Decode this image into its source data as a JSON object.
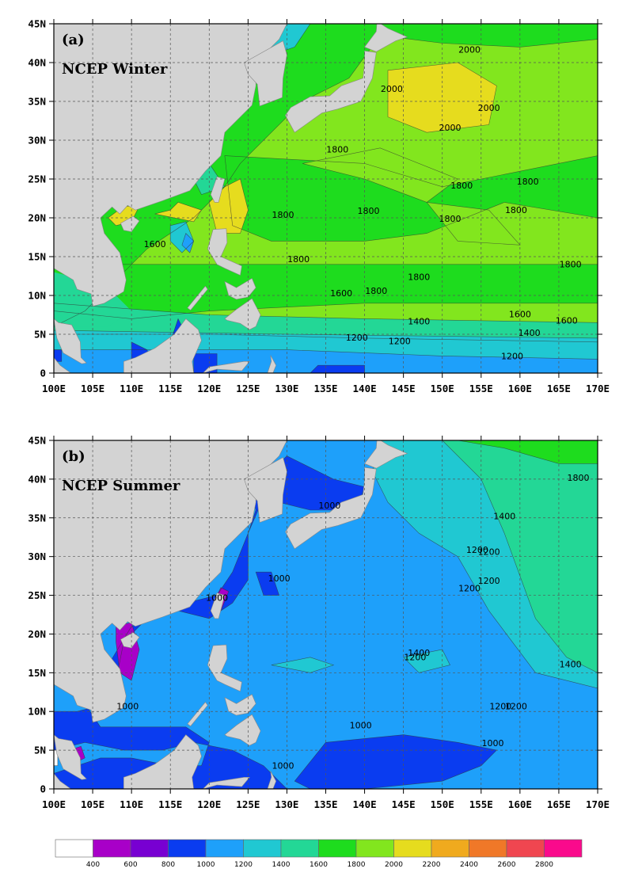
{
  "colors": {
    "land": "#d3d3d3",
    "grid": "#555555",
    "contour": "#333333"
  },
  "axes": {
    "x_ticks": [
      "100E",
      "105E",
      "110E",
      "115E",
      "120E",
      "125E",
      "130E",
      "135E",
      "140E",
      "145E",
      "150E",
      "155E",
      "160E",
      "165E",
      "170E"
    ],
    "y_ticks": [
      "45N",
      "40N",
      "35N",
      "30N",
      "25N",
      "20N",
      "15N",
      "10N",
      "5N",
      "0"
    ]
  },
  "panels": [
    {
      "letter": "(a)",
      "title": "NCEP Winter",
      "contour_labels": [
        {
          "text": "2000",
          "lon": 153.5,
          "lat": 41.3
        },
        {
          "text": "2000",
          "lon": 143.5,
          "lat": 36.2
        },
        {
          "text": "2000",
          "lon": 156,
          "lat": 33.8
        },
        {
          "text": "2000",
          "lon": 151,
          "lat": 31.2
        },
        {
          "text": "1800",
          "lon": 136.5,
          "lat": 28.4
        },
        {
          "text": "1800",
          "lon": 152.5,
          "lat": 23.8
        },
        {
          "text": "1800",
          "lon": 161,
          "lat": 24.3
        },
        {
          "text": "1800",
          "lon": 129.5,
          "lat": 20
        },
        {
          "text": "1800",
          "lon": 140.5,
          "lat": 20.5
        },
        {
          "text": "1800",
          "lon": 151,
          "lat": 19.5
        },
        {
          "text": "1800",
          "lon": 159.5,
          "lat": 20.6
        },
        {
          "text": "1600",
          "lon": 113,
          "lat": 16.2
        },
        {
          "text": "1800",
          "lon": 131.5,
          "lat": 14.3
        },
        {
          "text": "1800",
          "lon": 166.5,
          "lat": 13.6
        },
        {
          "text": "1800",
          "lon": 147,
          "lat": 12
        },
        {
          "text": "1600",
          "lon": 137,
          "lat": 9.9
        },
        {
          "text": "1800",
          "lon": 141.5,
          "lat": 10.2
        },
        {
          "text": "1400",
          "lon": 147,
          "lat": 6.3
        },
        {
          "text": "1600",
          "lon": 160,
          "lat": 7.2
        },
        {
          "text": "1600",
          "lon": 166,
          "lat": 6.4
        },
        {
          "text": "1400",
          "lon": 161.2,
          "lat": 4.8
        },
        {
          "text": "1200",
          "lon": 139,
          "lat": 4.2
        },
        {
          "text": "1200",
          "lon": 144.5,
          "lat": 3.7
        },
        {
          "text": "1200",
          "lon": 159,
          "lat": 1.8
        }
      ]
    },
    {
      "letter": "(b)",
      "title": "NCEP Summer",
      "contour_labels": [
        {
          "text": "1800",
          "lon": 167.5,
          "lat": 39.8
        },
        {
          "text": "1400",
          "lon": 158,
          "lat": 34.8
        },
        {
          "text": "1000",
          "lon": 135.5,
          "lat": 36.2
        },
        {
          "text": "1200",
          "lon": 154.5,
          "lat": 30.5
        },
        {
          "text": "1200",
          "lon": 156,
          "lat": 30.2
        },
        {
          "text": "1000",
          "lon": 129,
          "lat": 26.8
        },
        {
          "text": "1200",
          "lon": 156,
          "lat": 26.5
        },
        {
          "text": "1200",
          "lon": 153.5,
          "lat": 25.5
        },
        {
          "text": "1000",
          "lon": 121,
          "lat": 24.3
        },
        {
          "text": "1400",
          "lon": 147,
          "lat": 17.2
        },
        {
          "text": "1200",
          "lon": 146.5,
          "lat": 16.6
        },
        {
          "text": "1400",
          "lon": 166.5,
          "lat": 15.7
        },
        {
          "text": "1000",
          "lon": 109.5,
          "lat": 10.3
        },
        {
          "text": "1200",
          "lon": 157.5,
          "lat": 10.3
        },
        {
          "text": "1200",
          "lon": 159.5,
          "lat": 10.3
        },
        {
          "text": "1000",
          "lon": 139.5,
          "lat": 7.8
        },
        {
          "text": "1000",
          "lon": 156.5,
          "lat": 5.5
        },
        {
          "text": "1000",
          "lon": 129.5,
          "lat": 2.6
        }
      ]
    }
  ],
  "colorbar": {
    "labels": [
      "400",
      "600",
      "800",
      "1000",
      "1200",
      "1400",
      "1600",
      "1800",
      "2000",
      "2200",
      "2400",
      "2600",
      "2800"
    ],
    "colors": [
      "#ffffff",
      "#a800c8",
      "#7800d2",
      "#0a3cf0",
      "#1ea0fa",
      "#20c8d2",
      "#23d796",
      "#1edc1e",
      "#82e61e",
      "#e6dc1e",
      "#f0aa1e",
      "#f07828",
      "#f04650",
      "#fa0a8c"
    ]
  },
  "chart_data": [
    {
      "type": "heatmap",
      "title": "NCEP Winter",
      "panel": "(a)",
      "x_range_deg_east": [
        100,
        170
      ],
      "y_range_deg_north": [
        0,
        45
      ],
      "levels": [
        400,
        600,
        800,
        1000,
        1200,
        1400,
        1600,
        1800,
        2000,
        2200,
        2400,
        2600,
        2800
      ],
      "field_description_values": {
        "max_region_near_150E_35N": 2000,
        "subtropical_band": 1800,
        "near_equator": 1200
      }
    },
    {
      "type": "heatmap",
      "title": "NCEP Summer",
      "panel": "(b)",
      "x_range_deg_east": [
        100,
        170
      ],
      "y_range_deg_north": [
        0,
        45
      ],
      "levels": [
        400,
        600,
        800,
        1000,
        1200,
        1400,
        1600,
        1800,
        2000,
        2200,
        2400,
        2600,
        2800
      ],
      "field_description_values": {
        "northeast_corner": 1800,
        "central_ocean": 1200,
        "coastal_and_equatorial_min": 1000
      }
    }
  ]
}
